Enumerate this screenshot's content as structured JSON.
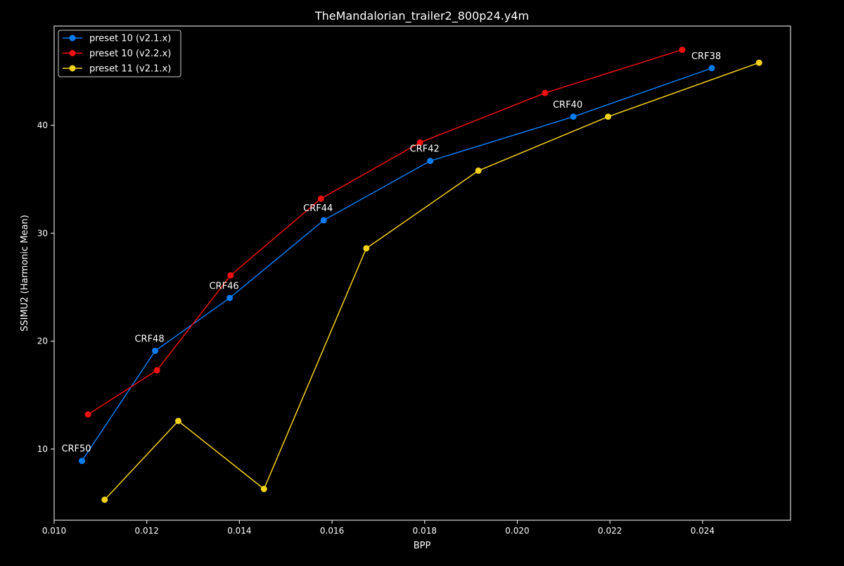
{
  "chart_data": {
    "type": "line",
    "title": "TheMandalorian_trailer2_800p24.y4m",
    "xlabel": "BPP",
    "ylabel": "SSIMU2 (Harmonic Mean)",
    "xlim": [
      0.01,
      0.0259
    ],
    "ylim": [
      3.4,
      49.2
    ],
    "x_ticks": [
      "0.010",
      "0.012",
      "0.014",
      "0.016",
      "0.018",
      "0.020",
      "0.022",
      "0.024"
    ],
    "x_tick_values": [
      0.01,
      0.012,
      0.014,
      0.016,
      0.018,
      0.02,
      0.022,
      0.024
    ],
    "y_ticks": [
      "10",
      "20",
      "30",
      "40"
    ],
    "y_tick_values": [
      10,
      20,
      30,
      40
    ],
    "grid": false,
    "legend_position": "top-left",
    "series": [
      {
        "name": "preset 10 (v2.1.x)",
        "color": "#0a7cf0",
        "x": [
          0.0106,
          0.01218,
          0.01379,
          0.01582,
          0.01812,
          0.02121,
          0.0242
        ],
        "y": [
          8.9,
          19.1,
          24.0,
          31.2,
          36.7,
          40.8,
          45.3
        ]
      },
      {
        "name": "preset 10 (v2.2.x)",
        "color": "#f01010",
        "x": [
          0.01073,
          0.01222,
          0.01381,
          0.01576,
          0.0179,
          0.0206,
          0.02356
        ],
        "y": [
          13.2,
          17.3,
          26.1,
          33.2,
          38.4,
          43.0,
          47.0
        ]
      },
      {
        "name": "preset 11 (v2.1.x)",
        "color": "#f5d21a",
        "x": [
          0.01109,
          0.01268,
          0.01453,
          0.01674,
          0.01916,
          0.02196,
          0.02522
        ],
        "y": [
          5.3,
          12.6,
          6.3,
          28.6,
          35.8,
          40.8,
          45.8
        ]
      }
    ],
    "annotations": [
      {
        "text": "CRF50",
        "x": 0.0106,
        "y": 8.9
      },
      {
        "text": "CRF48",
        "x": 0.01218,
        "y": 19.1
      },
      {
        "text": "CRF46",
        "x": 0.01379,
        "y": 24.0
      },
      {
        "text": "CRF44",
        "x": 0.01582,
        "y": 31.2
      },
      {
        "text": "CRF42",
        "x": 0.01812,
        "y": 36.7
      },
      {
        "text": "CRF40",
        "x": 0.02121,
        "y": 40.8
      },
      {
        "text": "CRF38",
        "x": 0.0242,
        "y": 45.3
      }
    ]
  }
}
